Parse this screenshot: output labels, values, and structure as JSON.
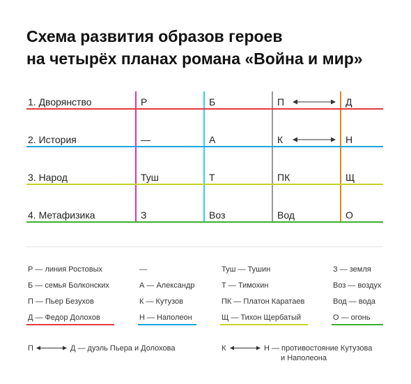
{
  "title": {
    "line1": "Схема развития образов героев",
    "line2": "на четырёх планах романа «Война и мир»"
  },
  "colors": {
    "red": "#e53a3a",
    "blue": "#1aa3e0",
    "yellow": "#c6d12a",
    "green": "#3ab02c",
    "magenta": "#e0359a",
    "cyan": "#36cde6",
    "gray": "#999999",
    "orange": "#d68a16"
  },
  "rows": [
    {
      "label": "1. Дворянство",
      "cells": [
        "Р",
        "Б",
        "П",
        "Д"
      ]
    },
    {
      "label": "2. История",
      "cells": [
        "—",
        "А",
        "К",
        "Н"
      ]
    },
    {
      "label": "3. Народ",
      "cells": [
        "Туш",
        "Т",
        "ПК",
        "Щ"
      ]
    },
    {
      "label": "4. Метафизика",
      "cells": [
        "З",
        "Воз",
        "Вод",
        "О"
      ]
    }
  ],
  "legend": {
    "col1": [
      "Р — линия Ростовых",
      "Б — семья Болконских",
      "П — Пьер Безухов",
      "Д — Федор Долохов"
    ],
    "col2": [
      "—",
      "А — Александр",
      "К — Кутузов",
      "Н — Наполеон"
    ],
    "col3": [
      "Туш — Тушин",
      "Т — Тимохин",
      "ПК — Платон Каратаев",
      "Щ — Тихон Щербатый"
    ],
    "col4": [
      "З — земля",
      "Воз — воздух",
      "Вод — вода",
      "О — огонь"
    ]
  },
  "footnotes": {
    "left_from": "П",
    "left_text": "Д — дуэль Пьера и Долохова",
    "right_from": "К",
    "right_text_line1": "Н — противостояние Кутузова",
    "right_text_line2": "и Наполеона"
  }
}
